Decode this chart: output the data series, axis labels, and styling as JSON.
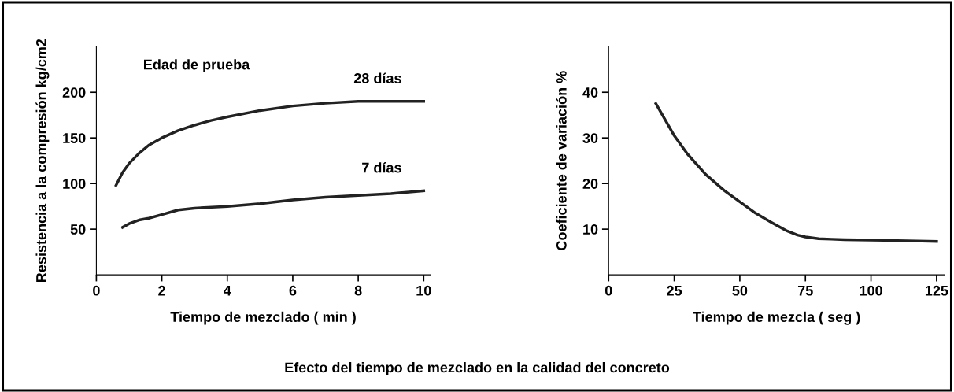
{
  "chart_data": [
    {
      "type": "line",
      "xlabel": "Tiempo de mezclado ( min )",
      "ylabel": "Resistencia a la compresión kg/cm2",
      "xlim": [
        0,
        10.2
      ],
      "ylim": [
        0,
        250
      ],
      "xticks": [
        0,
        2,
        4,
        6,
        8,
        10
      ],
      "yticks": [
        50,
        100,
        150,
        200
      ],
      "grid": false,
      "marker": "none",
      "line_style": "solid",
      "annotations": [
        "Edad de prueba",
        "Efecto del tiempo de mezclado en la calidad del concreto"
      ],
      "series": [
        {
          "name": "28 días",
          "color": "#222222",
          "x": [
            0.6,
            0.8,
            1,
            1.3,
            1.6,
            2,
            2.5,
            3,
            3.5,
            4,
            5,
            6,
            7,
            8,
            9,
            10
          ],
          "values": [
            98,
            112,
            122,
            133,
            142,
            150,
            158,
            164,
            169,
            173,
            180,
            185,
            188,
            190,
            190,
            190
          ]
        },
        {
          "name": "7 días",
          "color": "#222222",
          "x": [
            0.8,
            1,
            1.3,
            1.6,
            2,
            2.5,
            3,
            4,
            5,
            6,
            7,
            8,
            9,
            10
          ],
          "values": [
            52,
            56,
            60,
            62,
            66,
            71,
            73,
            75,
            78,
            82,
            85,
            87,
            89,
            92
          ]
        }
      ]
    },
    {
      "type": "line",
      "xlabel": "Tiempo de mezcla ( seg )",
      "ylabel": "Coeficiente de variación %",
      "xlim": [
        0,
        128
      ],
      "ylim": [
        0,
        50
      ],
      "xticks": [
        0,
        25,
        50,
        75,
        100,
        125
      ],
      "yticks": [
        10,
        20,
        30,
        40
      ],
      "grid": false,
      "marker": "none",
      "line_style": "solid",
      "series": [
        {
          "color": "#222222",
          "x": [
            18,
            22,
            25,
            30,
            37,
            44,
            50,
            56,
            62,
            68,
            72,
            75,
            80,
            85,
            90,
            100,
            110,
            125
          ],
          "values": [
            37.5,
            33.5,
            30.5,
            26.5,
            22,
            18.5,
            16,
            13.5,
            11.5,
            9.6,
            8.7,
            8.3,
            7.9,
            7.8,
            7.7,
            7.6,
            7.5,
            7.3
          ]
        }
      ]
    }
  ]
}
